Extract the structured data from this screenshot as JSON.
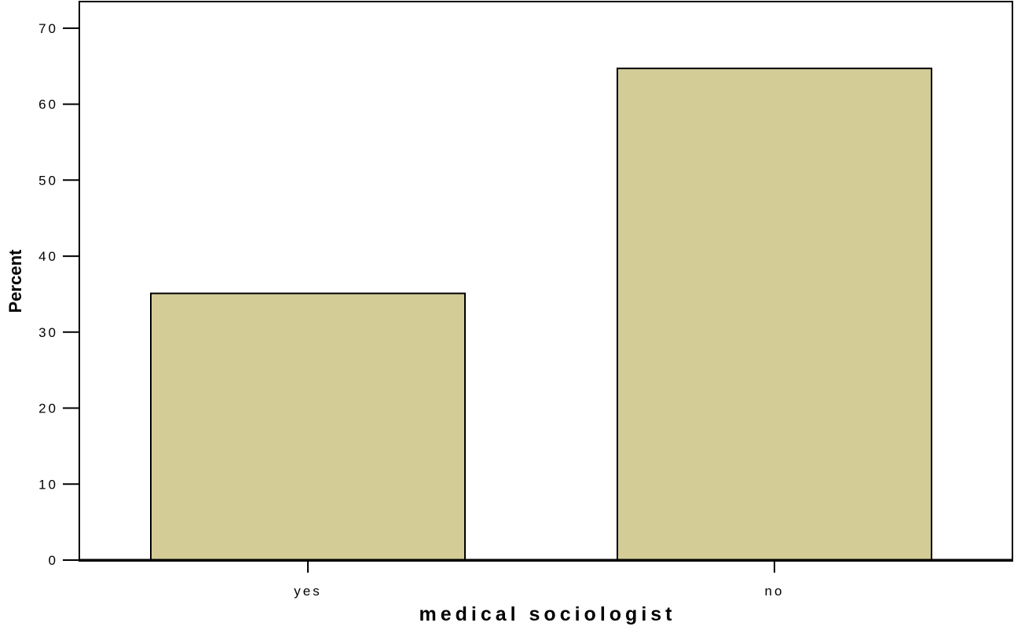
{
  "chart_data": {
    "type": "bar",
    "title": "",
    "xlabel": "medical sociologist",
    "ylabel": "Percent",
    "categories": [
      "yes",
      "no"
    ],
    "values": [
      35.1,
      64.7
    ],
    "ylim": [
      0,
      73.5
    ],
    "yticks": [
      0,
      10,
      20,
      30,
      40,
      50,
      60,
      70
    ],
    "ytick_labels": [
      "0",
      "10",
      "20",
      "30",
      "40",
      "50",
      "60",
      "70"
    ],
    "grid": false,
    "legend": "none",
    "colors": {
      "bar_fill": "#d3cc97",
      "bar_stroke": "#000000",
      "axis": "#000000",
      "background": "#ffffff"
    }
  }
}
